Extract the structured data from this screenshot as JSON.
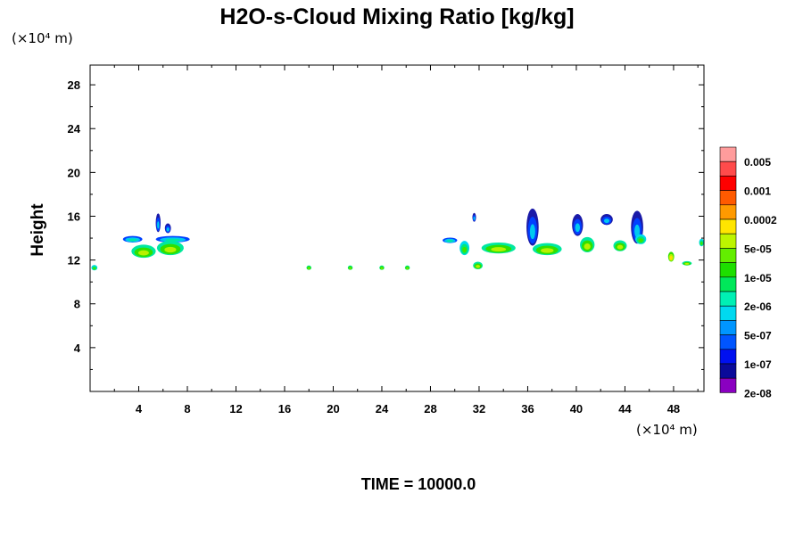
{
  "chart_data": {
    "type": "heatmap",
    "title": "H2O-s-Cloud Mixing Ratio [kg/kg]",
    "ylabel": "Height",
    "x_unit": "(×10⁴ m)",
    "y_unit": "(×10⁴ m)",
    "xlim": [
      0,
      50.5
    ],
    "ylim": [
      0,
      29.8
    ],
    "x_ticks": [
      4,
      8,
      12,
      16,
      20,
      24,
      28,
      32,
      36,
      40,
      44,
      48
    ],
    "y_ticks": [
      4,
      8,
      12,
      16,
      20,
      24,
      28
    ],
    "footer": "TIME = 10000.0",
    "colorbar": {
      "labels": [
        "0.005",
        "0.001",
        "0.0002",
        "5e-05",
        "1e-05",
        "2e-06",
        "5e-07",
        "1e-07",
        "2e-08"
      ],
      "colors": [
        "#ff9c9c",
        "#ff4b4b",
        "#ff0000",
        "#ff5a00",
        "#ff9a00",
        "#ffe500",
        "#bdf500",
        "#63ee00",
        "#1edf00",
        "#00e85a",
        "#00f0b4",
        "#00d9f0",
        "#0096ff",
        "#0055ff",
        "#0010f0",
        "#0a0a9a",
        "#8a00c0"
      ]
    },
    "cloud_patches": [
      {
        "x": 0.35,
        "y": 11.3,
        "w": 0.5,
        "h": 0.5,
        "level": "2e-06"
      },
      {
        "x": 3.5,
        "y": 13.9,
        "w": 1.6,
        "h": 0.6,
        "level": "1e-07"
      },
      {
        "x": 4.4,
        "y": 12.8,
        "w": 2.0,
        "h": 1.2,
        "level": "5e-05"
      },
      {
        "x": 5.6,
        "y": 15.4,
        "w": 0.4,
        "h": 1.7,
        "level": "2e-08"
      },
      {
        "x": 6.8,
        "y": 13.9,
        "w": 2.8,
        "h": 0.6,
        "level": "1e-07"
      },
      {
        "x": 6.6,
        "y": 13.1,
        "w": 2.2,
        "h": 1.3,
        "level": "5e-05"
      },
      {
        "x": 6.4,
        "y": 14.9,
        "w": 0.5,
        "h": 0.9,
        "level": "2e-08"
      },
      {
        "x": 18.0,
        "y": 11.3,
        "w": 0.4,
        "h": 0.4,
        "level": "1e-05"
      },
      {
        "x": 21.4,
        "y": 11.3,
        "w": 0.4,
        "h": 0.4,
        "level": "1e-05"
      },
      {
        "x": 24.0,
        "y": 11.3,
        "w": 0.4,
        "h": 0.4,
        "level": "1e-05"
      },
      {
        "x": 26.1,
        "y": 11.3,
        "w": 0.4,
        "h": 0.4,
        "level": "1e-05"
      },
      {
        "x": 29.6,
        "y": 13.8,
        "w": 1.2,
        "h": 0.5,
        "level": "1e-07"
      },
      {
        "x": 30.8,
        "y": 13.1,
        "w": 0.8,
        "h": 1.3,
        "level": "2e-06"
      },
      {
        "x": 31.6,
        "y": 15.9,
        "w": 0.3,
        "h": 0.8,
        "level": "2e-08"
      },
      {
        "x": 31.9,
        "y": 11.5,
        "w": 0.8,
        "h": 0.7,
        "level": "5e-05"
      },
      {
        "x": 33.6,
        "y": 13.1,
        "w": 2.8,
        "h": 1.0,
        "level": "5e-05"
      },
      {
        "x": 36.4,
        "y": 15.0,
        "w": 1.0,
        "h": 3.4,
        "level": "2e-08"
      },
      {
        "x": 37.6,
        "y": 13.0,
        "w": 2.4,
        "h": 1.1,
        "level": "5e-05"
      },
      {
        "x": 40.1,
        "y": 15.2,
        "w": 0.9,
        "h": 2.0,
        "level": "2e-08"
      },
      {
        "x": 40.9,
        "y": 13.4,
        "w": 1.2,
        "h": 1.4,
        "level": "5e-05"
      },
      {
        "x": 42.5,
        "y": 15.7,
        "w": 1.0,
        "h": 1.0,
        "level": "2e-08"
      },
      {
        "x": 43.6,
        "y": 13.3,
        "w": 1.1,
        "h": 1.0,
        "level": "5e-05"
      },
      {
        "x": 45.0,
        "y": 15.0,
        "w": 1.0,
        "h": 3.0,
        "level": "2e-08"
      },
      {
        "x": 45.3,
        "y": 13.9,
        "w": 0.9,
        "h": 0.9,
        "level": "2e-06"
      },
      {
        "x": 47.8,
        "y": 12.3,
        "w": 0.5,
        "h": 0.9,
        "level": "0.0002"
      },
      {
        "x": 49.1,
        "y": 11.7,
        "w": 0.8,
        "h": 0.4,
        "level": "5e-05"
      },
      {
        "x": 50.3,
        "y": 13.6,
        "w": 0.4,
        "h": 0.7,
        "level": "2e-06"
      }
    ]
  }
}
